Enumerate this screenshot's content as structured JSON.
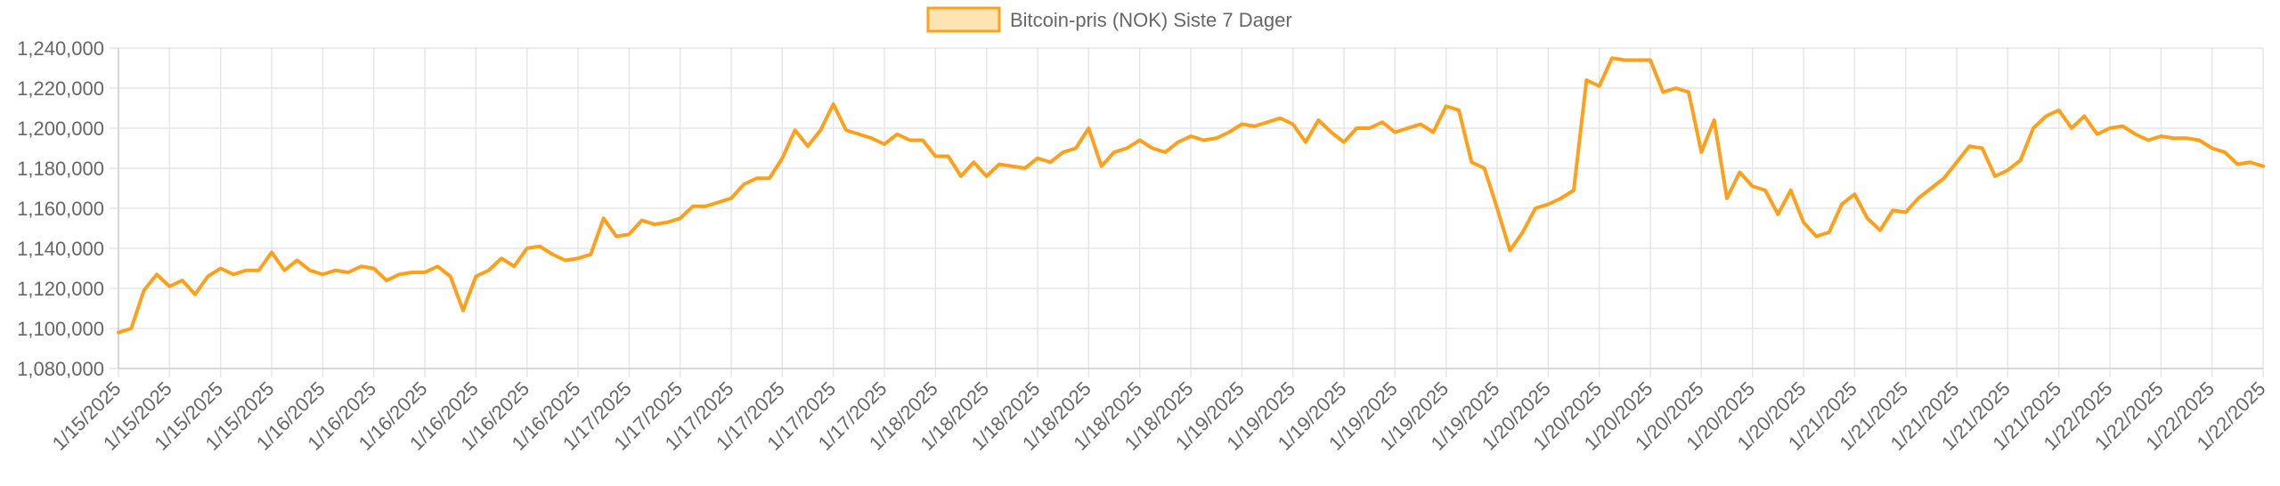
{
  "chart_data": {
    "type": "line",
    "legend": {
      "label": "Bitcoin-pris (NOK) Siste 7 Dager",
      "position": "top"
    },
    "colors": {
      "line": "#ff9f1a",
      "fill": "#ffe4b3",
      "grid": "#e6e6e6",
      "text": "#666666"
    },
    "grid": true,
    "ylim": [
      1080000,
      1240000
    ],
    "yticks": [
      {
        "value": 1240000,
        "label": "1,240,000"
      },
      {
        "value": 1220000,
        "label": "1,220,000"
      },
      {
        "value": 1200000,
        "label": "1,200,000"
      },
      {
        "value": 1180000,
        "label": "1,180,000"
      },
      {
        "value": 1160000,
        "label": "1,160,000"
      },
      {
        "value": 1140000,
        "label": "1,140,000"
      },
      {
        "value": 1120000,
        "label": "1,120,000"
      },
      {
        "value": 1100000,
        "label": "1,100,000"
      },
      {
        "value": 1080000,
        "label": "1,080,000"
      }
    ],
    "xticks": [
      "1/15/2025",
      "1/15/2025",
      "1/15/2025",
      "1/15/2025",
      "1/16/2025",
      "1/16/2025",
      "1/16/2025",
      "1/16/2025",
      "1/16/2025",
      "1/16/2025",
      "1/17/2025",
      "1/17/2025",
      "1/17/2025",
      "1/17/2025",
      "1/17/2025",
      "1/17/2025",
      "1/18/2025",
      "1/18/2025",
      "1/18/2025",
      "1/18/2025",
      "1/18/2025",
      "1/18/2025",
      "1/19/2025",
      "1/19/2025",
      "1/19/2025",
      "1/19/2025",
      "1/19/2025",
      "1/19/2025",
      "1/20/2025",
      "1/20/2025",
      "1/20/2025",
      "1/20/2025",
      "1/20/2025",
      "1/20/2025",
      "1/21/2025",
      "1/21/2025",
      "1/21/2025",
      "1/21/2025",
      "1/21/2025",
      "1/22/2025",
      "1/22/2025",
      "1/22/2025",
      "1/22/2025"
    ],
    "series": [
      {
        "values": [
          1098000,
          1100000,
          1119000,
          1127000,
          1121000,
          1124000,
          1117000,
          1126000,
          1130000,
          1127000,
          1129000,
          1129000,
          1138000,
          1129000,
          1134000,
          1129000,
          1127000,
          1129000,
          1128000,
          1131000,
          1130000,
          1124000,
          1127000,
          1128000,
          1128000,
          1131000,
          1126000,
          1109000,
          1126000,
          1129000,
          1135000,
          1131000,
          1140000,
          1141000,
          1137000,
          1134000,
          1135000,
          1137000,
          1155000,
          1146000,
          1147000,
          1154000,
          1152000,
          1153000,
          1155000,
          1161000,
          1161000,
          1163000,
          1165000,
          1172000,
          1175000,
          1175000,
          1185000,
          1199000,
          1191000,
          1199000,
          1212000,
          1199000,
          1197000,
          1195000,
          1192000,
          1197000,
          1194000,
          1194000,
          1186000,
          1186000,
          1176000,
          1183000,
          1176000,
          1182000,
          1181000,
          1180000,
          1185000,
          1183000,
          1188000,
          1190000,
          1200000,
          1181000,
          1188000,
          1190000,
          1194000,
          1190000,
          1188000,
          1193000,
          1196000,
          1194000,
          1195000,
          1198000,
          1202000,
          1201000,
          1203000,
          1205000,
          1202000,
          1193000,
          1204000,
          1198000,
          1193000,
          1200000,
          1200000,
          1203000,
          1198000,
          1200000,
          1202000,
          1198000,
          1211000,
          1209000,
          1183000,
          1180000,
          1160000,
          1139000,
          1148000,
          1160000,
          1162000,
          1165000,
          1169000,
          1224000,
          1221000,
          1235000,
          1234000,
          1234000,
          1234000,
          1218000,
          1220000,
          1218000,
          1188000,
          1204000,
          1165000,
          1178000,
          1171000,
          1169000,
          1157000,
          1169000,
          1153000,
          1146000,
          1148000,
          1162000,
          1167000,
          1155000,
          1149000,
          1159000,
          1158000,
          1165000,
          1170000,
          1175000,
          1183000,
          1191000,
          1190000,
          1176000,
          1179000,
          1184000,
          1200000,
          1206000,
          1209000,
          1200000,
          1206000,
          1197000,
          1200000,
          1201000,
          1197000,
          1194000,
          1196000,
          1195000,
          1195000,
          1194000,
          1190000,
          1188000,
          1182000,
          1183000,
          1181000
        ]
      }
    ]
  }
}
